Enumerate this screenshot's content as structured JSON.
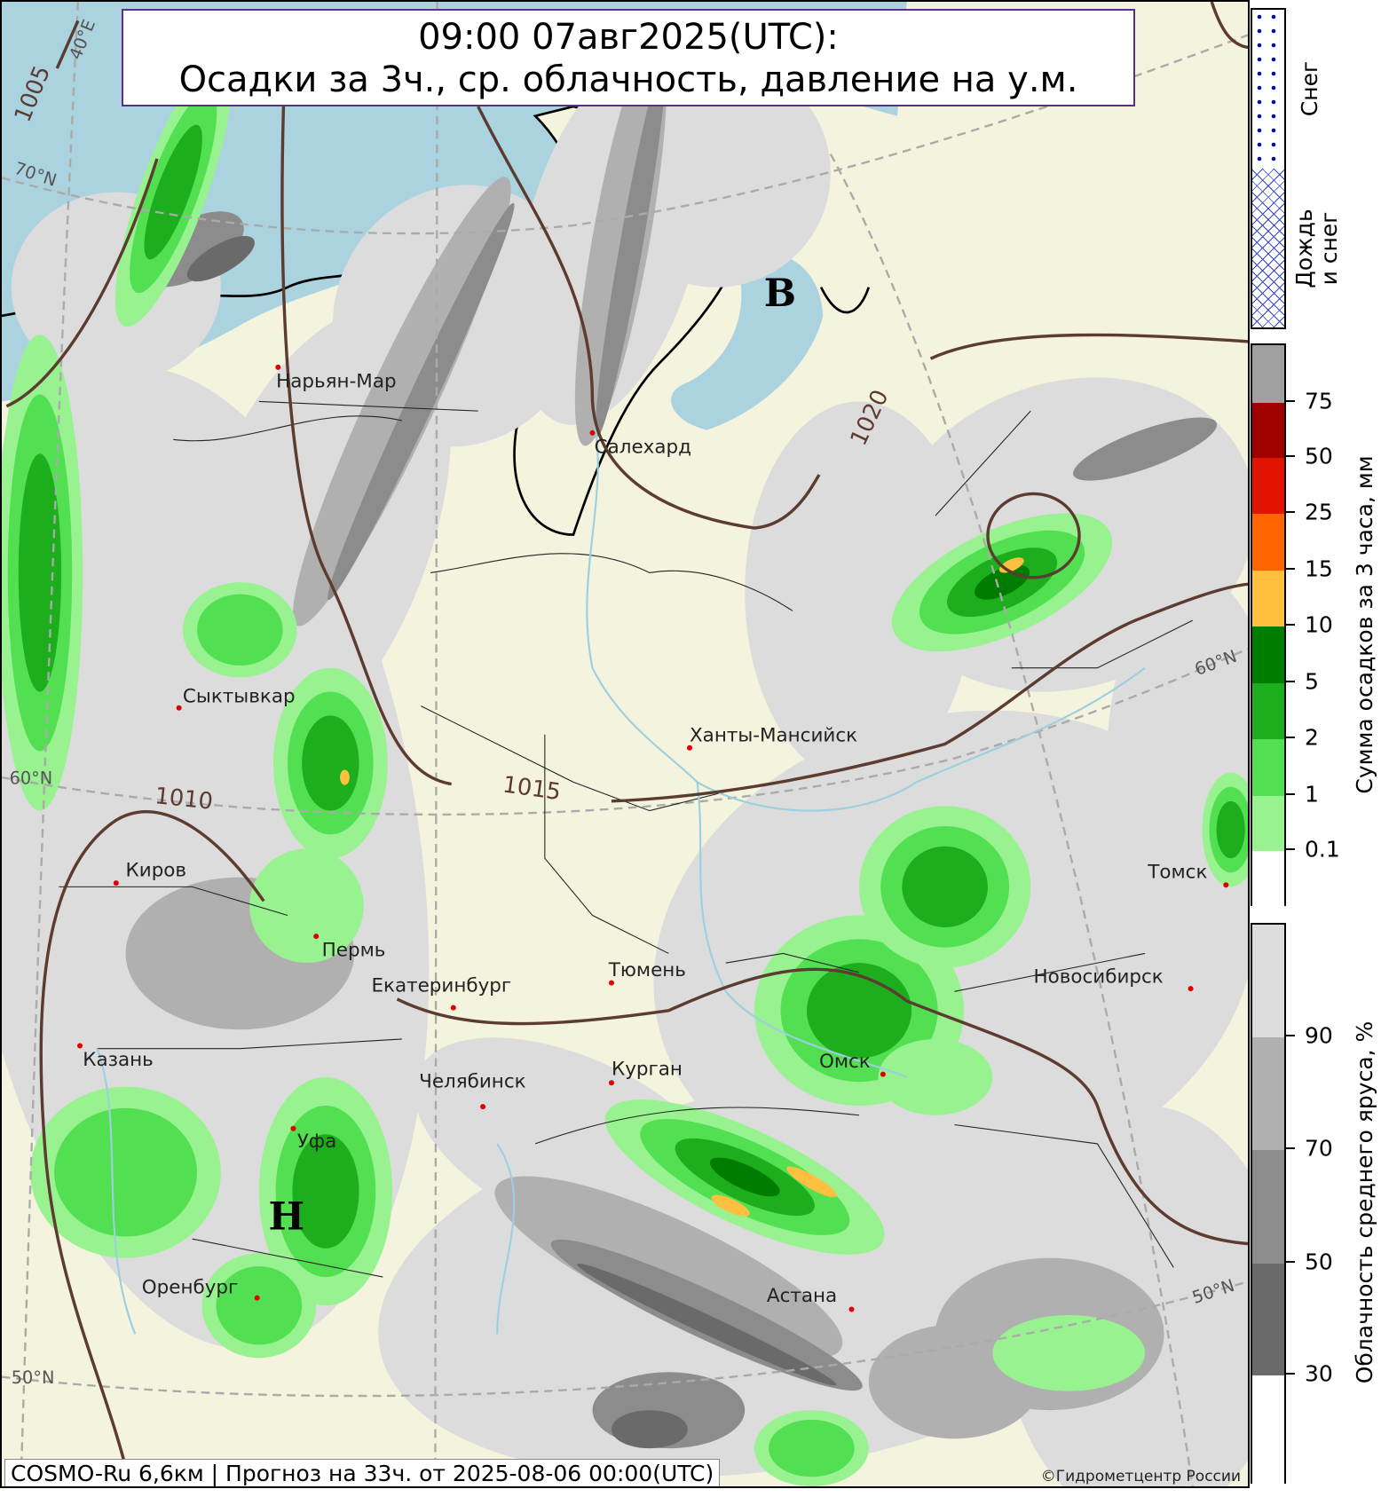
{
  "title": {
    "line1": "09:00 07авг2025(UTC):",
    "line2": "Осадки за 3ч., ср. облачность, давление на у.м."
  },
  "caption": "COSMO-Ru 6,6км | Прогноз на  33ч. от 2025-08-06 00:00(UTC)",
  "copyright": "©Гидрометцентр России",
  "cities": [
    {
      "name": "Нарьян-Мар"
    },
    {
      "name": "Салехард"
    },
    {
      "name": "Сыктывкар"
    },
    {
      "name": "Ханты-Мансийск"
    },
    {
      "name": "Киров"
    },
    {
      "name": "Пермь"
    },
    {
      "name": "Екатеринбург"
    },
    {
      "name": "Тюмень"
    },
    {
      "name": "Новосибирск"
    },
    {
      "name": "Томск"
    },
    {
      "name": "Казань"
    },
    {
      "name": "Курган"
    },
    {
      "name": "Челябинск"
    },
    {
      "name": "Омск"
    },
    {
      "name": "Уфа"
    },
    {
      "name": "Оренбург"
    },
    {
      "name": "Астана"
    }
  ],
  "pressure_centers": {
    "high": "В",
    "low": "Н"
  },
  "isobar_labels": [
    "1005",
    "1010",
    "1015",
    "1020"
  ],
  "graticule_labels": {
    "lat70": "70°N",
    "lat60_left": "60°N",
    "lat60_right": "60°N",
    "lat50_left": "50°N",
    "lat50_right": "50°N",
    "lon40": "40°E"
  },
  "legend": {
    "phase": {
      "snow": "Снег",
      "mix_line1": "Дождь",
      "mix_line2": "и снег",
      "snow_color": "#0000cc",
      "mix_color": "#3344cc"
    },
    "precip": {
      "label": "Сумма осадков за 3 часа, мм",
      "ticks": [
        "75",
        "50",
        "25",
        "15",
        "10",
        "5",
        "2",
        "1",
        "0.1"
      ],
      "colors": [
        "#a0a0a0",
        "#a00000",
        "#e01400",
        "#ff6600",
        "#ffc040",
        "#007c00",
        "#1cae1c",
        "#52e052",
        "#98f290",
        "#ffffff"
      ]
    },
    "cloud": {
      "label": "Облачность среднего яруса, %",
      "ticks": [
        "90",
        "70",
        "50",
        "30"
      ],
      "colors": [
        "#dcdcdc",
        "#b0b0b0",
        "#8c8c8c",
        "#6a6a6a",
        "#ffffff"
      ]
    }
  },
  "map_colors": {
    "land": "#f4f3de",
    "sea": "#aad3df",
    "isobar": "#5c3b30",
    "city_dot": "#e00000"
  }
}
